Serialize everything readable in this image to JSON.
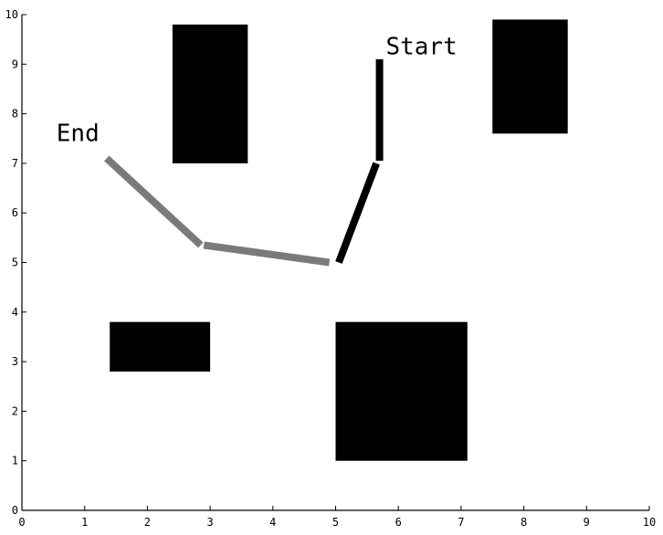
{
  "plot": {
    "xlim": [
      0,
      10
    ],
    "ylim": [
      0,
      10
    ],
    "x_ticks": [
      0,
      1,
      2,
      3,
      4,
      5,
      6,
      7,
      8,
      9,
      10
    ],
    "y_ticks": [
      0,
      1,
      2,
      3,
      4,
      5,
      6,
      7,
      8,
      9,
      10
    ],
    "grid": false,
    "colors": {
      "obstacle": "#000000",
      "path_start_segment": "#000000",
      "path_end_segment": "#7a7a7a",
      "background": "#ffffff"
    }
  },
  "labels": {
    "start": {
      "text": "Start",
      "x": 5.8,
      "y": 9.2
    },
    "end": {
      "text": "End",
      "x": 0.55,
      "y": 7.45
    }
  },
  "obstacles": [
    {
      "x0": 2.4,
      "x1": 3.6,
      "y0": 7.0,
      "y1": 9.8
    },
    {
      "x0": 7.5,
      "x1": 8.7,
      "y0": 7.6,
      "y1": 9.9
    },
    {
      "x0": 1.4,
      "x1": 3.0,
      "y0": 2.8,
      "y1": 3.8
    },
    {
      "x0": 5.0,
      "x1": 7.1,
      "y0": 1.0,
      "y1": 3.8
    }
  ],
  "path_segments": [
    {
      "from": [
        5.7,
        9.1
      ],
      "to": [
        5.7,
        7.05
      ],
      "style": "start"
    },
    {
      "from": [
        5.65,
        7.0
      ],
      "to": [
        5.05,
        5.0
      ],
      "style": "start"
    },
    {
      "from": [
        4.9,
        5.0
      ],
      "to": [
        2.9,
        5.35
      ],
      "style": "end"
    },
    {
      "from": [
        2.85,
        5.35
      ],
      "to": [
        1.35,
        7.1
      ],
      "style": "end"
    }
  ]
}
